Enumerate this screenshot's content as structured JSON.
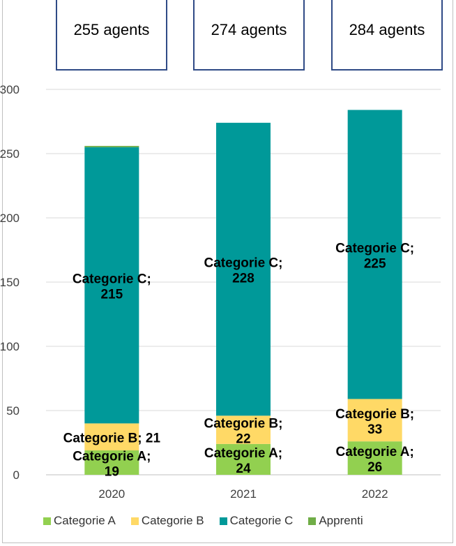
{
  "callouts": [
    "255 agents",
    "274 agents",
    "284 agents"
  ],
  "chart_data": {
    "type": "bar",
    "stacked": true,
    "categories": [
      "2020",
      "2021",
      "2022"
    ],
    "series": [
      {
        "name": "Categorie A",
        "color": "#92d050",
        "values": [
          19,
          24,
          26
        ],
        "labels": [
          [
            "Categorie A;",
            "19"
          ],
          [
            "Categorie A;",
            "24"
          ],
          [
            "Categorie A;",
            "26"
          ]
        ]
      },
      {
        "name": "Categorie B",
        "color": "#ffd966",
        "values": [
          21,
          22,
          33
        ],
        "labels": [
          [
            "Categorie B; 21"
          ],
          [
            "Categorie B;",
            "22"
          ],
          [
            "Categorie B;",
            "33"
          ]
        ]
      },
      {
        "name": "Categorie C",
        "color": "#009999",
        "values": [
          215,
          228,
          225
        ],
        "labels": [
          [
            "Categorie C;",
            "215"
          ],
          [
            "Categorie C;",
            "228"
          ],
          [
            "Categorie C;",
            "225"
          ]
        ]
      },
      {
        "name": "Apprenti",
        "color": "#70ad47",
        "values": [
          1,
          0,
          0
        ],
        "labels": [
          [],
          [],
          []
        ]
      }
    ],
    "ylim": [
      0,
      300
    ],
    "yticks": [
      0,
      50,
      100,
      150,
      200,
      250,
      300
    ],
    "grid": true,
    "legend": "bottom"
  }
}
